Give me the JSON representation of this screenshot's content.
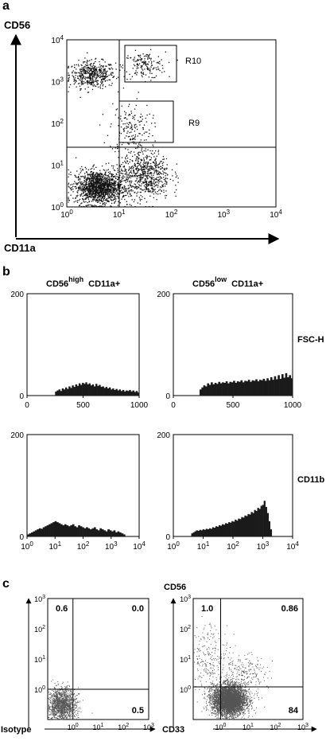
{
  "panel_a": {
    "label": "a",
    "y_axis_label": "CD56",
    "x_axis_label": "CD11a",
    "gate_labels": [
      "R10",
      "R9"
    ],
    "tick_exponents": [
      "0",
      "1",
      "2",
      "3",
      "4"
    ],
    "tick_base": "10"
  },
  "panel_b": {
    "label": "b",
    "col_titles": [
      {
        "base": "CD56",
        "sup": "high",
        "suffix": "CD11a+"
      },
      {
        "base": "CD56",
        "sup": "low",
        "suffix": "CD11a+"
      }
    ],
    "row_labels": [
      "FSC-H",
      "CD11b"
    ],
    "linear_ticks": [
      "0",
      "500",
      "1000"
    ],
    "y_ticks": [
      "0",
      "200"
    ],
    "log_exponents": [
      "0",
      "1",
      "2",
      "3",
      "4"
    ]
  },
  "panel_c": {
    "label": "c",
    "left_y_label": "Isotype",
    "right_y_label": "CD56",
    "x_axis_label": "CD33",
    "log_exponents": [
      "0",
      "1",
      "2",
      "3"
    ],
    "left_quadrants": {
      "ul": "0.6",
      "ur": "0.0",
      "lr": "0.5"
    },
    "right_quadrants": {
      "ul": "1.0",
      "ur": "0.86",
      "lr": "84"
    }
  },
  "chart_data": [
    {
      "type": "scatter",
      "title": "",
      "xlabel": "CD11a",
      "ylabel": "CD56",
      "xscale": "log",
      "yscale": "log",
      "xlim": [
        1,
        10000
      ],
      "ylim": [
        1,
        10000
      ],
      "gates": [
        {
          "name": "R10",
          "x": [
            12,
            100
          ],
          "y": [
            900,
            8000
          ]
        },
        {
          "name": "R9",
          "x": [
            11,
            100
          ],
          "y": [
            30,
            300
          ]
        }
      ],
      "quadrant_lines": {
        "x": 10,
        "y": 30
      },
      "populations": [
        {
          "cx": 3,
          "cy": 1500,
          "sx": 0.22,
          "sy": 0.16,
          "n": 480
        },
        {
          "cx": 30,
          "cy": 2500,
          "sx": 0.2,
          "sy": 0.16,
          "n": 160
        },
        {
          "cx": 16,
          "cy": 80,
          "sx": 0.2,
          "sy": 0.3,
          "n": 160
        },
        {
          "cx": 4,
          "cy": 3,
          "sx": 0.22,
          "sy": 0.2,
          "n": 1400
        },
        {
          "cx": 30,
          "cy": 6,
          "sx": 0.25,
          "sy": 0.3,
          "n": 700
        }
      ]
    },
    {
      "type": "bar",
      "title": "CD56 high CD11a+ FSC-H",
      "xlabel": "FSC-H",
      "xlim": [
        0,
        1000
      ],
      "ylim": [
        0,
        200
      ],
      "x_start": 250,
      "x_end": 1000,
      "values": [
        8,
        10,
        12,
        9,
        14,
        12,
        16,
        13,
        18,
        15,
        20,
        17,
        22,
        19,
        24,
        21,
        25,
        23,
        26,
        22,
        24,
        20,
        22,
        18,
        23,
        19,
        21,
        17,
        18,
        15,
        17,
        14,
        16,
        12,
        14,
        11,
        13,
        10,
        12,
        9,
        11,
        8,
        10,
        9,
        11,
        8,
        10,
        7,
        9,
        6
      ]
    },
    {
      "type": "bar",
      "title": "CD56 low CD11a+ FSC-H",
      "xlabel": "FSC-H",
      "xlim": [
        0,
        1000
      ],
      "ylim": [
        0,
        200
      ],
      "x_start": 220,
      "x_end": 1000,
      "values": [
        12,
        16,
        20,
        18,
        24,
        21,
        26,
        22,
        25,
        23,
        27,
        24,
        26,
        25,
        28,
        24,
        27,
        26,
        29,
        25,
        28,
        27,
        30,
        26,
        29,
        28,
        31,
        27,
        30,
        29,
        32,
        28,
        31,
        30,
        33,
        29,
        34,
        30,
        36,
        31,
        38,
        32,
        40,
        33,
        42,
        35,
        44,
        36,
        40,
        34
      ]
    },
    {
      "type": "bar",
      "title": "CD56 high CD11a+ CD11b",
      "xlabel": "CD11b",
      "xscale": "log",
      "xlim": [
        1,
        10000
      ],
      "ylim": [
        0,
        200
      ],
      "x_start_log": 0.0,
      "x_end_log": 3.5,
      "values": [
        4,
        6,
        8,
        10,
        12,
        14,
        16,
        15,
        18,
        20,
        22,
        24,
        26,
        28,
        30,
        28,
        26,
        24,
        22,
        24,
        22,
        20,
        22,
        24,
        20,
        18,
        22,
        20,
        18,
        16,
        18,
        16,
        14,
        16,
        18,
        14,
        12,
        16,
        14,
        12,
        10,
        14,
        12,
        10,
        12,
        8,
        10,
        8,
        6,
        4
      ]
    },
    {
      "type": "bar",
      "title": "CD56 low CD11a+ CD11b",
      "xlabel": "CD11b",
      "xscale": "log",
      "xlim": [
        1,
        10000
      ],
      "ylim": [
        0,
        200
      ],
      "x_start_log": 0.6,
      "x_end_log": 3.3,
      "values": [
        6,
        8,
        10,
        12,
        11,
        13,
        12,
        14,
        13,
        15,
        14,
        16,
        15,
        18,
        17,
        20,
        19,
        22,
        21,
        24,
        23,
        26,
        25,
        28,
        27,
        30,
        29,
        33,
        31,
        35,
        34,
        38,
        37,
        41,
        40,
        44,
        43,
        48,
        46,
        52,
        50,
        56,
        54,
        60,
        62,
        70,
        58,
        46,
        30,
        14
      ]
    },
    {
      "type": "scatter",
      "title": "Isotype",
      "xlabel": "CD33",
      "ylabel": "Isotype",
      "xscale": "log",
      "yscale": "log",
      "xlim": [
        0.1,
        1000
      ],
      "ylim": [
        0.1,
        1000
      ],
      "quadrant_lines": {
        "x": 1.0,
        "y": 1.0
      },
      "quadrant_percent": {
        "upper_left": 0.6,
        "upper_right": 0.0,
        "lower_right": 0.5
      },
      "populations": [
        {
          "cx": 0.35,
          "cy": 0.3,
          "sx": 0.28,
          "sy": 0.28,
          "n": 1500
        }
      ]
    },
    {
      "type": "scatter",
      "title": "CD56",
      "xlabel": "CD33",
      "ylabel": "CD56",
      "xscale": "log",
      "yscale": "log",
      "xlim": [
        0.1,
        1000
      ],
      "ylim": [
        0.1,
        1000
      ],
      "quadrant_lines": {
        "x": 1.0,
        "y": 1.2
      },
      "quadrant_percent": {
        "upper_left": 1.0,
        "upper_right": 0.86,
        "lower_right": 84
      },
      "populations": [
        {
          "cx": 2.0,
          "cy": 0.45,
          "sx": 0.3,
          "sy": 0.25,
          "n": 4500
        },
        {
          "cx": 0.4,
          "cy": 10,
          "sx": 0.35,
          "sy": 0.6,
          "n": 250
        },
        {
          "cx": 6,
          "cy": 3,
          "sx": 0.45,
          "sy": 0.35,
          "n": 250
        }
      ]
    }
  ]
}
